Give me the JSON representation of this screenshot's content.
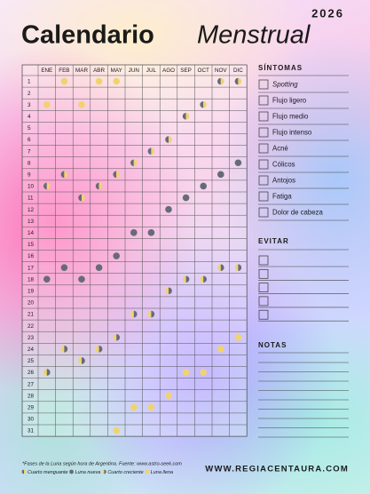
{
  "header": {
    "year": "2026",
    "title_bold": "Calendario",
    "title_italic": "Menstrual"
  },
  "calendar": {
    "months": [
      "ENE",
      "FEB",
      "MAR",
      "ABR",
      "MAY",
      "JUN",
      "JUL",
      "AGO",
      "SEP",
      "OCT",
      "NOV",
      "DIC"
    ],
    "days": [
      1,
      2,
      3,
      4,
      5,
      6,
      7,
      8,
      9,
      10,
      11,
      12,
      13,
      14,
      15,
      16,
      17,
      18,
      19,
      20,
      21,
      22,
      23,
      24,
      25,
      26,
      27,
      28,
      29,
      30,
      31
    ]
  },
  "sintomas": {
    "title": "SÍNTOMAS",
    "items": [
      "Spotting",
      "Flujo ligero",
      "Flujo medio",
      "Flujo intenso",
      "Acné",
      "Cólicos",
      "Antojos",
      "Fatiga",
      "Dolor de cabeza"
    ]
  },
  "evitar": {
    "title": "EVITAR"
  },
  "notas": {
    "title": "NOTAS"
  },
  "footer": {
    "note": "*Fases de la Luna según hora de Argentina. Fuente: www.astro-seek.com",
    "legend": [
      "Cuarto menguante",
      "Luna nueva",
      "Cuarto creciente",
      "Luna llena"
    ],
    "website": "WWW.REGIACENTAURA.COM"
  }
}
